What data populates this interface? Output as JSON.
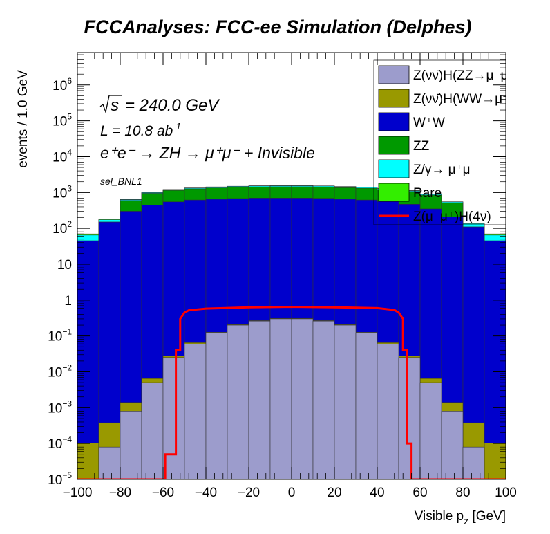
{
  "chart_data": {
    "type": "area",
    "title": "FCCAnalyses: FCC-ee Simulation (Delphes)",
    "xlabel": "Visible p",
    "xlabel_sub": "z",
    "xlabel_unit": " [GeV]",
    "ylabel": "events / 1.0 GeV",
    "xlim": [
      -100,
      100
    ],
    "ylim": [
      1e-05,
      8000000
    ],
    "yscale": "log",
    "stacked": true,
    "grid": false,
    "legend_position": "top-right",
    "x_tick_labels": [
      "−100",
      "−80",
      "−60",
      "−40",
      "−20",
      "0",
      "20",
      "40",
      "60",
      "80",
      "100"
    ],
    "annotations": {
      "sqrt_s": "= 240.0 GeV",
      "lumi_base": "L = 10.8 ab",
      "lumi_sup": "-1",
      "process": "e⁺e⁻ → ZH → μ⁺μ⁻ + Invisible",
      "selection": "sel_BNL1"
    },
    "x": [
      -95,
      -85,
      -75,
      -65,
      -55,
      -45,
      -35,
      -25,
      -15,
      -5,
      5,
      15,
      25,
      35,
      45,
      55,
      65,
      75,
      85,
      95
    ],
    "series": [
      {
        "name": "Z(νν̄)H(ZZ→μ⁺μ⁻νν̄)",
        "color": "#9c9ccc",
        "values": [
          3e-06,
          8e-05,
          0.0008,
          0.005,
          0.025,
          0.06,
          0.12,
          0.2,
          0.26,
          0.3,
          0.3,
          0.26,
          0.2,
          0.12,
          0.06,
          0.025,
          0.005,
          0.0008,
          8e-05,
          3e-06
        ]
      },
      {
        "name": "Z(νν̄)H(WW→μ⁺νμ⁻ν̄)",
        "color": "#999900",
        "values": [
          0.0001,
          0.0003,
          0.0006,
          0.0015,
          0.003,
          0.005,
          0.006,
          0.007,
          0.008,
          0.009,
          0.009,
          0.008,
          0.007,
          0.006,
          0.005,
          0.003,
          0.0015,
          0.0006,
          0.0003,
          0.0001
        ]
      },
      {
        "name": "W⁺W⁻",
        "color": "#0000cc",
        "values": [
          45,
          150,
          300,
          450,
          550,
          620,
          650,
          680,
          700,
          700,
          700,
          690,
          650,
          620,
          560,
          470,
          350,
          210,
          110,
          45
        ]
      },
      {
        "name": "ZZ",
        "color": "#009900",
        "values": [
          0,
          0,
          300,
          500,
          600,
          650,
          700,
          720,
          740,
          750,
          750,
          740,
          720,
          700,
          650,
          600,
          500,
          300,
          0,
          0
        ]
      },
      {
        "name": "Z/γ→ μ⁺μ⁻",
        "color": "#00ffff",
        "values": [
          20,
          25,
          35,
          45,
          55,
          65,
          75,
          85,
          90,
          90,
          90,
          88,
          85,
          80,
          70,
          55,
          45,
          35,
          25,
          20
        ]
      },
      {
        "name": "Rare",
        "color": "#33ee00",
        "values": [
          5,
          6.5,
          7.5,
          9,
          10.5,
          12,
          13,
          14,
          14.5,
          15,
          15,
          14.5,
          14,
          13,
          12,
          10.5,
          9,
          7.5,
          6.5,
          5
        ]
      }
    ],
    "signal": {
      "name": "Z(μ⁻μ⁺)H(4ν)",
      "color": "#ff0000",
      "x": [
        -100,
        -59,
        -59,
        -54,
        -54,
        -52,
        -52,
        -50,
        -48,
        -40,
        -20,
        0,
        20,
        40,
        48,
        50,
        52,
        52,
        54,
        54,
        56,
        56,
        100
      ],
      "values": [
        1e-05,
        1e-05,
        5e-05,
        5e-05,
        0.04,
        0.04,
        0.3,
        0.45,
        0.52,
        0.58,
        0.63,
        0.65,
        0.63,
        0.6,
        0.53,
        0.45,
        0.3,
        0.04,
        0.04,
        0.0001,
        0.0001,
        1e-05,
        1e-05
      ]
    },
    "legend_entries": [
      "Z(νν̄)H(ZZ→μ⁺μ⁻νν̄)",
      "Z(νν̄)H(WW→μ⁺νμ⁻ν̄)",
      "W⁺W⁻",
      "ZZ",
      "Z/γ→ μ⁺μ⁻",
      "Rare",
      "Z(μ⁻μ⁺)H(4ν)"
    ]
  }
}
